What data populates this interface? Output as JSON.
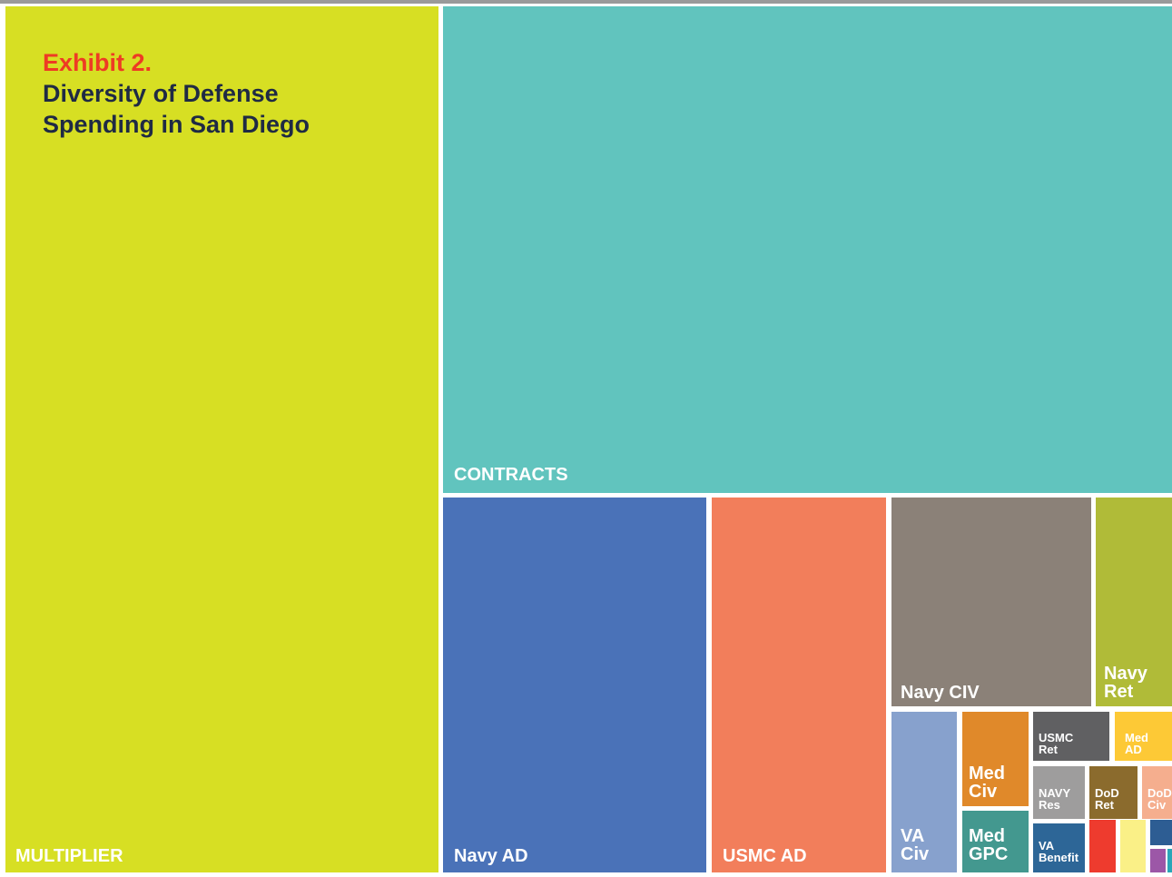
{
  "header": {
    "exhibit_label": "Exhibit 2.",
    "title": "Diversity of Defense\nSpending in San Diego"
  },
  "chart_data": {
    "type": "treemap",
    "title": "Diversity of Defense Spending in San Diego",
    "exhibit": "Exhibit 2.",
    "items": [
      {
        "label": "MULTIPLIER",
        "value": 34.7,
        "color": "#d7df23"
      },
      {
        "label": "CONTRACTS",
        "value": 30.8,
        "color": "#61c4be"
      },
      {
        "label": "Navy AD",
        "value": 9.8,
        "color": "#4a72b8"
      },
      {
        "label": "USMC AD",
        "value": 6.6,
        "color": "#f27e5b"
      },
      {
        "label": "Navy CIV",
        "value": 4.1,
        "color": "#8b8178"
      },
      {
        "label": "Navy Ret",
        "value": 1.6,
        "color": "#b0bb38"
      },
      {
        "label": "VA Civ",
        "value": 1.2,
        "color": "#87a1cd"
      },
      {
        "label": "Med Civ",
        "value": 0.6,
        "color": "#e0892a"
      },
      {
        "label": "Med GPC",
        "value": 0.5,
        "color": "#43988f"
      },
      {
        "label": "USMC Ret",
        "value": 0.5,
        "color": "#606062"
      },
      {
        "label": "Med AD",
        "value": 0.3,
        "color": "#fdc936"
      },
      {
        "label": "NAVY Res",
        "value": 0.4,
        "color": "#9e9d9d"
      },
      {
        "label": "DoD Ret",
        "value": 0.3,
        "color": "#8b6b2d"
      },
      {
        "label": "DoD Civ",
        "value": 0.2,
        "color": "#f5ae8e"
      },
      {
        "label": "VA Benefit",
        "value": 0.3,
        "color": "#2d6697"
      },
      {
        "label": "",
        "value": 0.15,
        "color": "#ee3b2e"
      },
      {
        "label": "",
        "value": 0.15,
        "color": "#faf087"
      },
      {
        "label": "",
        "value": 0.1,
        "color": "#2d5d93"
      },
      {
        "label": "",
        "value": 0.05,
        "color": "#9c57a7"
      },
      {
        "label": "",
        "value": 0.03,
        "color": "#2aa6b8"
      }
    ]
  }
}
